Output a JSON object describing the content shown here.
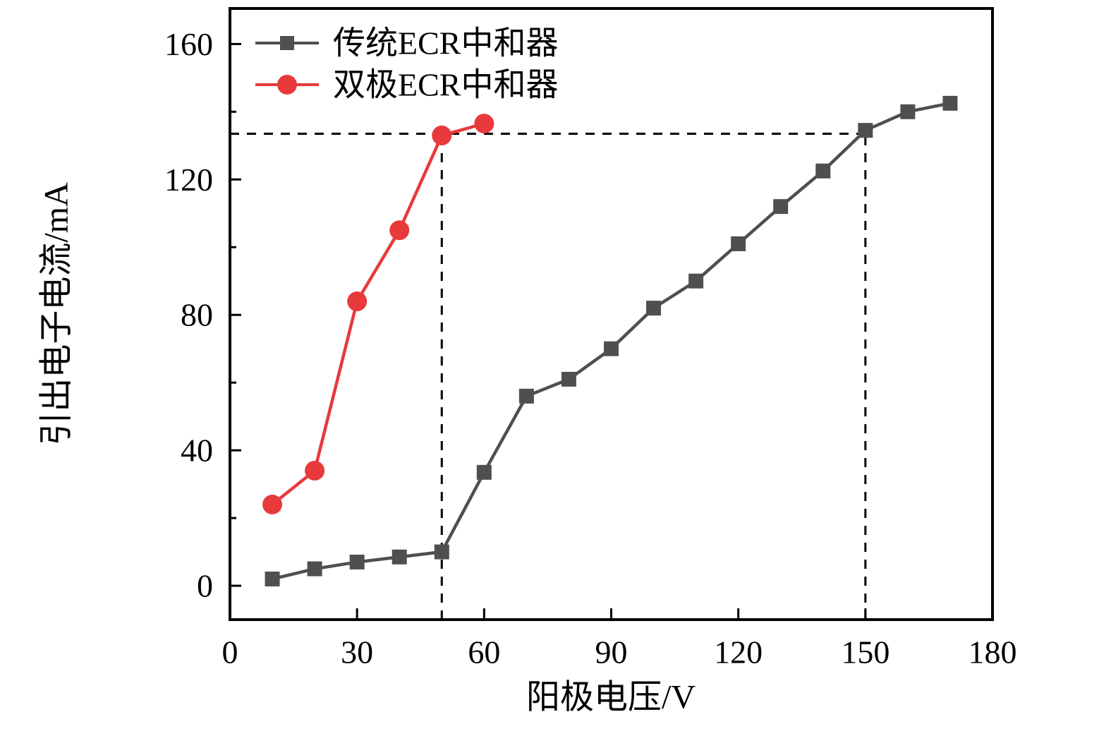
{
  "chart_data": {
    "type": "line",
    "title": "",
    "xlabel": "阳极电压/V",
    "ylabel": "引出电子电流/mA",
    "xlim": [
      0,
      180
    ],
    "ylim": [
      -10,
      170.5
    ],
    "x_ticks": [
      0,
      30,
      60,
      90,
      120,
      150,
      180
    ],
    "y_ticks_major": [
      0,
      40,
      80,
      120,
      160
    ],
    "y_ticks_minor": [
      20,
      60,
      100,
      140
    ],
    "grid": false,
    "legend_position": "top-left-inside",
    "axis_color": "#000000",
    "series": [
      {
        "name": "传统ECR中和器",
        "marker": "square",
        "color": "#4f4f4f",
        "x": [
          10,
          20,
          30,
          40,
          50,
          60,
          70,
          80,
          90,
          100,
          110,
          120,
          130,
          140,
          150,
          160,
          170
        ],
        "y": [
          2,
          5,
          7,
          8.5,
          10,
          33.5,
          56,
          61,
          70,
          82,
          90,
          101,
          112,
          122.5,
          134.5,
          140,
          142.5
        ]
      },
      {
        "name": "双极ECR中和器",
        "marker": "circle",
        "color": "#e8393c",
        "x": [
          10,
          20,
          30,
          40,
          50,
          60
        ],
        "y": [
          24,
          34,
          84,
          105,
          133,
          136.5
        ]
      }
    ],
    "reference_lines": {
      "horizontal": [
        {
          "y": 133.5,
          "x_from": 0,
          "x_to": 150
        }
      ],
      "vertical": [
        {
          "x": 50,
          "y_from": -10,
          "y_to": 133
        },
        {
          "x": 150,
          "y_from": -10,
          "y_to": 134.5
        }
      ],
      "style": "dashed",
      "color": "#000000"
    }
  }
}
